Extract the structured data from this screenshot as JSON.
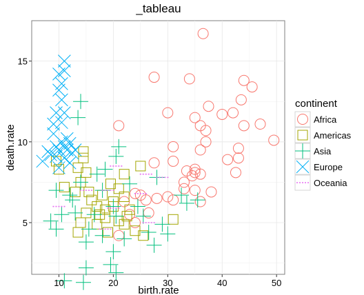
{
  "chart_data": {
    "type": "scatter",
    "title": "_tableau",
    "xlabel": "birth.rate",
    "ylabel": "death.rate",
    "xlim": [
      5,
      51.5
    ],
    "ylim": [
      1.8,
      17.5
    ],
    "x_ticks": [
      10,
      20,
      30,
      40,
      50
    ],
    "y_ticks": [
      5,
      10,
      15
    ],
    "grid": true,
    "legend_title": "continent",
    "legend_position": "right",
    "series": [
      {
        "name": "Africa",
        "color": "#F8766D",
        "shape": "circle",
        "points": [
          [
            36.5,
            16.7
          ],
          [
            27.5,
            14.0
          ],
          [
            34.0,
            13.9
          ],
          [
            44.0,
            13.8
          ],
          [
            45.5,
            13.4
          ],
          [
            43.5,
            12.6
          ],
          [
            37.5,
            12.2
          ],
          [
            40.0,
            11.7
          ],
          [
            42.0,
            11.8
          ],
          [
            30.0,
            11.8
          ],
          [
            35.0,
            11.5
          ],
          [
            47.0,
            11.1
          ],
          [
            21.0,
            11.0
          ],
          [
            36.0,
            11.0
          ],
          [
            44.0,
            11.0
          ],
          [
            37.0,
            10.7
          ],
          [
            37.0,
            10.0
          ],
          [
            31.0,
            9.7
          ],
          [
            36.0,
            9.5
          ],
          [
            49.5,
            10.1
          ],
          [
            43.0,
            9.6
          ],
          [
            41.0,
            8.9
          ],
          [
            43.0,
            9.0
          ],
          [
            31.0,
            8.8
          ],
          [
            27.5,
            8.7
          ],
          [
            33.5,
            8.2
          ],
          [
            35.0,
            8.3
          ],
          [
            35.0,
            8.1
          ],
          [
            36.0,
            8.0
          ],
          [
            42.5,
            8.1
          ],
          [
            34.5,
            7.9
          ],
          [
            33.0,
            7.5
          ],
          [
            33.0,
            7.1
          ],
          [
            35.0,
            7.0
          ],
          [
            38.0,
            6.9
          ],
          [
            24.0,
            6.8
          ],
          [
            25.0,
            6.7
          ],
          [
            30.0,
            6.6
          ],
          [
            26.0,
            6.4
          ],
          [
            31.0,
            6.4
          ],
          [
            36.0,
            6.3
          ],
          [
            28.0,
            6.5
          ],
          [
            26.5,
            5.6
          ],
          [
            23.0,
            5.5
          ],
          [
            22.0,
            6.3
          ],
          [
            24.0,
            5.0
          ],
          [
            21.0,
            4.2
          ]
        ]
      },
      {
        "name": "Americas",
        "color": "#A3A500",
        "shape": "square",
        "points": [
          [
            14.5,
            9.4
          ],
          [
            14.5,
            9.0
          ],
          [
            9.5,
            8.8
          ],
          [
            10.0,
            8.3
          ],
          [
            13.5,
            8.4
          ],
          [
            15.0,
            8.1
          ],
          [
            25.0,
            8.5
          ],
          [
            22.0,
            8.0
          ],
          [
            14.0,
            7.5
          ],
          [
            11.0,
            7.2
          ],
          [
            19.5,
            7.4
          ],
          [
            21.0,
            7.1
          ],
          [
            13.0,
            6.9
          ],
          [
            15.5,
            6.9
          ],
          [
            18.0,
            6.7
          ],
          [
            20.0,
            6.3
          ],
          [
            16.0,
            6.4
          ],
          [
            20.0,
            6.0
          ],
          [
            23.0,
            5.8
          ],
          [
            22.5,
            5.4
          ],
          [
            15.0,
            5.6
          ],
          [
            17.5,
            5.5
          ],
          [
            18.5,
            5.3
          ],
          [
            21.0,
            5.1
          ],
          [
            14.0,
            5.0
          ],
          [
            17.0,
            4.9
          ],
          [
            22.0,
            4.9
          ],
          [
            13.5,
            4.4
          ],
          [
            19.0,
            4.4
          ],
          [
            24.0,
            4.5
          ],
          [
            25.5,
            4.2
          ],
          [
            31.0,
            5.2
          ],
          [
            18.5,
            5.8
          ],
          [
            22.0,
            6.6
          ],
          [
            17.0,
            6.0
          ]
        ]
      },
      {
        "name": "Asia",
        "color": "#00BF7D",
        "shape": "plus",
        "points": [
          [
            14.0,
            12.5
          ],
          [
            13.5,
            11.5
          ],
          [
            21.0,
            9.7
          ],
          [
            20.5,
            9.1
          ],
          [
            18.5,
            8.3
          ],
          [
            17.0,
            8.0
          ],
          [
            14.0,
            7.5
          ],
          [
            9.5,
            7.0
          ],
          [
            12.0,
            6.7
          ],
          [
            12.5,
            6.4
          ],
          [
            18.0,
            7.0
          ],
          [
            23.0,
            7.4
          ],
          [
            28.0,
            7.8
          ],
          [
            32.5,
            6.7
          ],
          [
            35.5,
            6.4
          ],
          [
            33.5,
            6.2
          ],
          [
            24.5,
            6.0
          ],
          [
            13.0,
            5.6
          ],
          [
            16.5,
            5.5
          ],
          [
            20.0,
            6.0
          ],
          [
            20.5,
            5.4
          ],
          [
            25.5,
            5.4
          ],
          [
            29.0,
            4.9
          ],
          [
            8.5,
            5.1
          ],
          [
            10.5,
            5.5
          ],
          [
            9.5,
            4.6
          ],
          [
            15.5,
            4.6
          ],
          [
            18.0,
            4.2
          ],
          [
            22.0,
            4.0
          ],
          [
            26.5,
            4.4
          ],
          [
            30.0,
            4.3
          ],
          [
            15.0,
            3.8
          ],
          [
            27.5,
            3.6
          ],
          [
            20.0,
            3.2
          ],
          [
            15.0,
            2.2
          ],
          [
            19.5,
            2.4
          ],
          [
            20.5,
            1.9
          ],
          [
            11.0,
            1.4
          ],
          [
            14.5,
            1.3
          ]
        ]
      },
      {
        "name": "Europe",
        "color": "#00B0F6",
        "shape": "x",
        "points": [
          [
            11.0,
            15.0
          ],
          [
            10.0,
            14.2
          ],
          [
            11.0,
            14.4
          ],
          [
            10.5,
            13.6
          ],
          [
            10.0,
            13.2
          ],
          [
            10.5,
            12.6
          ],
          [
            9.5,
            11.8
          ],
          [
            11.0,
            11.8
          ],
          [
            10.5,
            11.2
          ],
          [
            9.0,
            11.1
          ],
          [
            9.0,
            10.5
          ],
          [
            11.5,
            10.2
          ],
          [
            10.5,
            10.0
          ],
          [
            12.0,
            9.9
          ],
          [
            9.5,
            9.7
          ],
          [
            11.5,
            9.5
          ],
          [
            11.0,
            9.7
          ],
          [
            10.0,
            9.5
          ],
          [
            13.0,
            9.5
          ],
          [
            12.5,
            9.3
          ],
          [
            8.5,
            9.2
          ],
          [
            9.5,
            9.1
          ],
          [
            11.0,
            9.0
          ],
          [
            7.0,
            8.8
          ],
          [
            12.0,
            8.7
          ],
          [
            10.0,
            8.4
          ],
          [
            8.0,
            9.4
          ]
        ]
      },
      {
        "name": "Oceania",
        "color": "#E76BF3",
        "shape": "dotted-line",
        "points": [
          [
            20.5,
            8.5
          ],
          [
            26.0,
            8.0
          ],
          [
            29.0,
            7.8
          ],
          [
            15.0,
            7.0
          ],
          [
            19.0,
            7.0
          ],
          [
            25.0,
            6.8
          ],
          [
            10.0,
            6.0
          ],
          [
            20.0,
            5.9
          ],
          [
            26.5,
            5.0
          ],
          [
            18.5,
            4.6
          ]
        ]
      }
    ]
  }
}
